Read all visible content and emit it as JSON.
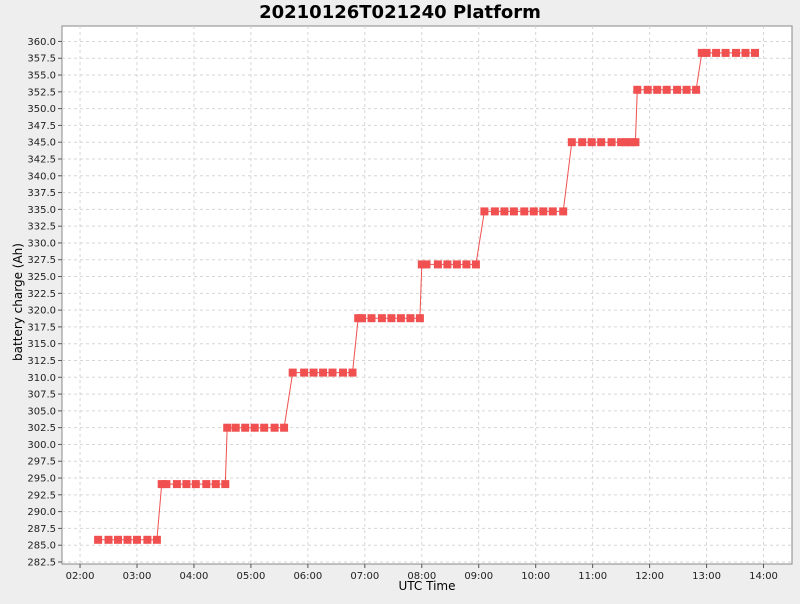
{
  "chart_data": {
    "type": "line",
    "title": "20210126T021240 Platform",
    "xlabel": "UTC Time",
    "ylabel": "battery charge (Ah)",
    "xlim": [
      "01:41",
      "14:30"
    ],
    "ylim": [
      282.2,
      362.3
    ],
    "x_ticks": [
      "02:00",
      "03:00",
      "04:00",
      "05:00",
      "06:00",
      "07:00",
      "08:00",
      "09:00",
      "10:00",
      "11:00",
      "12:00",
      "13:00",
      "14:00"
    ],
    "y_ticks": [
      "282.5",
      "285.0",
      "287.5",
      "290.0",
      "292.5",
      "295.0",
      "297.5",
      "300.0",
      "302.5",
      "305.0",
      "307.5",
      "310.0",
      "312.5",
      "315.0",
      "317.5",
      "320.0",
      "322.5",
      "325.0",
      "327.5",
      "330.0",
      "332.5",
      "335.0",
      "337.5",
      "340.0",
      "342.5",
      "345.0",
      "347.5",
      "350.0",
      "352.5",
      "355.0",
      "357.5",
      "360.0"
    ],
    "grid": true,
    "legend": "none",
    "series": [
      {
        "color": "#f05050",
        "marker": "square",
        "points": [
          {
            "x": "02:19",
            "y": 285.8
          },
          {
            "x": "02:30",
            "y": 285.8
          },
          {
            "x": "02:40",
            "y": 285.8
          },
          {
            "x": "02:50",
            "y": 285.8
          },
          {
            "x": "03:00",
            "y": 285.8
          },
          {
            "x": "03:11",
            "y": 285.8
          },
          {
            "x": "03:21",
            "y": 285.8
          },
          {
            "x": "03:26",
            "y": 294.1
          },
          {
            "x": "03:31",
            "y": 294.1
          },
          {
            "x": "03:42",
            "y": 294.1
          },
          {
            "x": "03:52",
            "y": 294.1
          },
          {
            "x": "04:02",
            "y": 294.1
          },
          {
            "x": "04:13",
            "y": 294.1
          },
          {
            "x": "04:23",
            "y": 294.1
          },
          {
            "x": "04:33",
            "y": 294.1
          },
          {
            "x": "04:35",
            "y": 302.5
          },
          {
            "x": "04:44",
            "y": 302.5
          },
          {
            "x": "04:54",
            "y": 302.5
          },
          {
            "x": "05:04",
            "y": 302.5
          },
          {
            "x": "05:14",
            "y": 302.5
          },
          {
            "x": "05:25",
            "y": 302.5
          },
          {
            "x": "05:35",
            "y": 302.5
          },
          {
            "x": "05:44",
            "y": 310.7
          },
          {
            "x": "05:56",
            "y": 310.7
          },
          {
            "x": "06:06",
            "y": 310.7
          },
          {
            "x": "06:16",
            "y": 310.7
          },
          {
            "x": "06:26",
            "y": 310.7
          },
          {
            "x": "06:37",
            "y": 310.7
          },
          {
            "x": "06:47",
            "y": 310.7
          },
          {
            "x": "06:53",
            "y": 318.8
          },
          {
            "x": "06:57",
            "y": 318.8
          },
          {
            "x": "07:07",
            "y": 318.8
          },
          {
            "x": "07:18",
            "y": 318.8
          },
          {
            "x": "07:28",
            "y": 318.8
          },
          {
            "x": "07:38",
            "y": 318.8
          },
          {
            "x": "07:48",
            "y": 318.8
          },
          {
            "x": "07:58",
            "y": 318.8
          },
          {
            "x": "08:00",
            "y": 326.8
          },
          {
            "x": "08:05",
            "y": 326.8
          },
          {
            "x": "08:17",
            "y": 326.8
          },
          {
            "x": "08:27",
            "y": 326.8
          },
          {
            "x": "08:37",
            "y": 326.8
          },
          {
            "x": "08:47",
            "y": 326.8
          },
          {
            "x": "08:57",
            "y": 326.8
          },
          {
            "x": "09:06",
            "y": 334.7
          },
          {
            "x": "09:17",
            "y": 334.7
          },
          {
            "x": "09:27",
            "y": 334.7
          },
          {
            "x": "09:37",
            "y": 334.7
          },
          {
            "x": "09:48",
            "y": 334.7
          },
          {
            "x": "09:58",
            "y": 334.7
          },
          {
            "x": "10:08",
            "y": 334.7
          },
          {
            "x": "10:18",
            "y": 334.7
          },
          {
            "x": "10:29",
            "y": 334.7
          },
          {
            "x": "10:38",
            "y": 345.0
          },
          {
            "x": "10:49",
            "y": 345.0
          },
          {
            "x": "10:59",
            "y": 345.0
          },
          {
            "x": "11:09",
            "y": 345.0
          },
          {
            "x": "11:20",
            "y": 345.0
          },
          {
            "x": "11:30",
            "y": 345.0
          },
          {
            "x": "11:35",
            "y": 345.0
          },
          {
            "x": "11:40",
            "y": 345.0
          },
          {
            "x": "11:45",
            "y": 345.0
          },
          {
            "x": "11:47",
            "y": 352.8
          },
          {
            "x": "11:58",
            "y": 352.8
          },
          {
            "x": "12:08",
            "y": 352.8
          },
          {
            "x": "12:18",
            "y": 352.8
          },
          {
            "x": "12:29",
            "y": 352.8
          },
          {
            "x": "12:39",
            "y": 352.8
          },
          {
            "x": "12:49",
            "y": 352.8
          },
          {
            "x": "12:55",
            "y": 358.3
          },
          {
            "x": "13:00",
            "y": 358.3
          },
          {
            "x": "13:10",
            "y": 358.3
          },
          {
            "x": "13:20",
            "y": 358.3
          },
          {
            "x": "13:31",
            "y": 358.3
          },
          {
            "x": "13:41",
            "y": 358.3
          },
          {
            "x": "13:51",
            "y": 358.3
          }
        ]
      }
    ]
  }
}
